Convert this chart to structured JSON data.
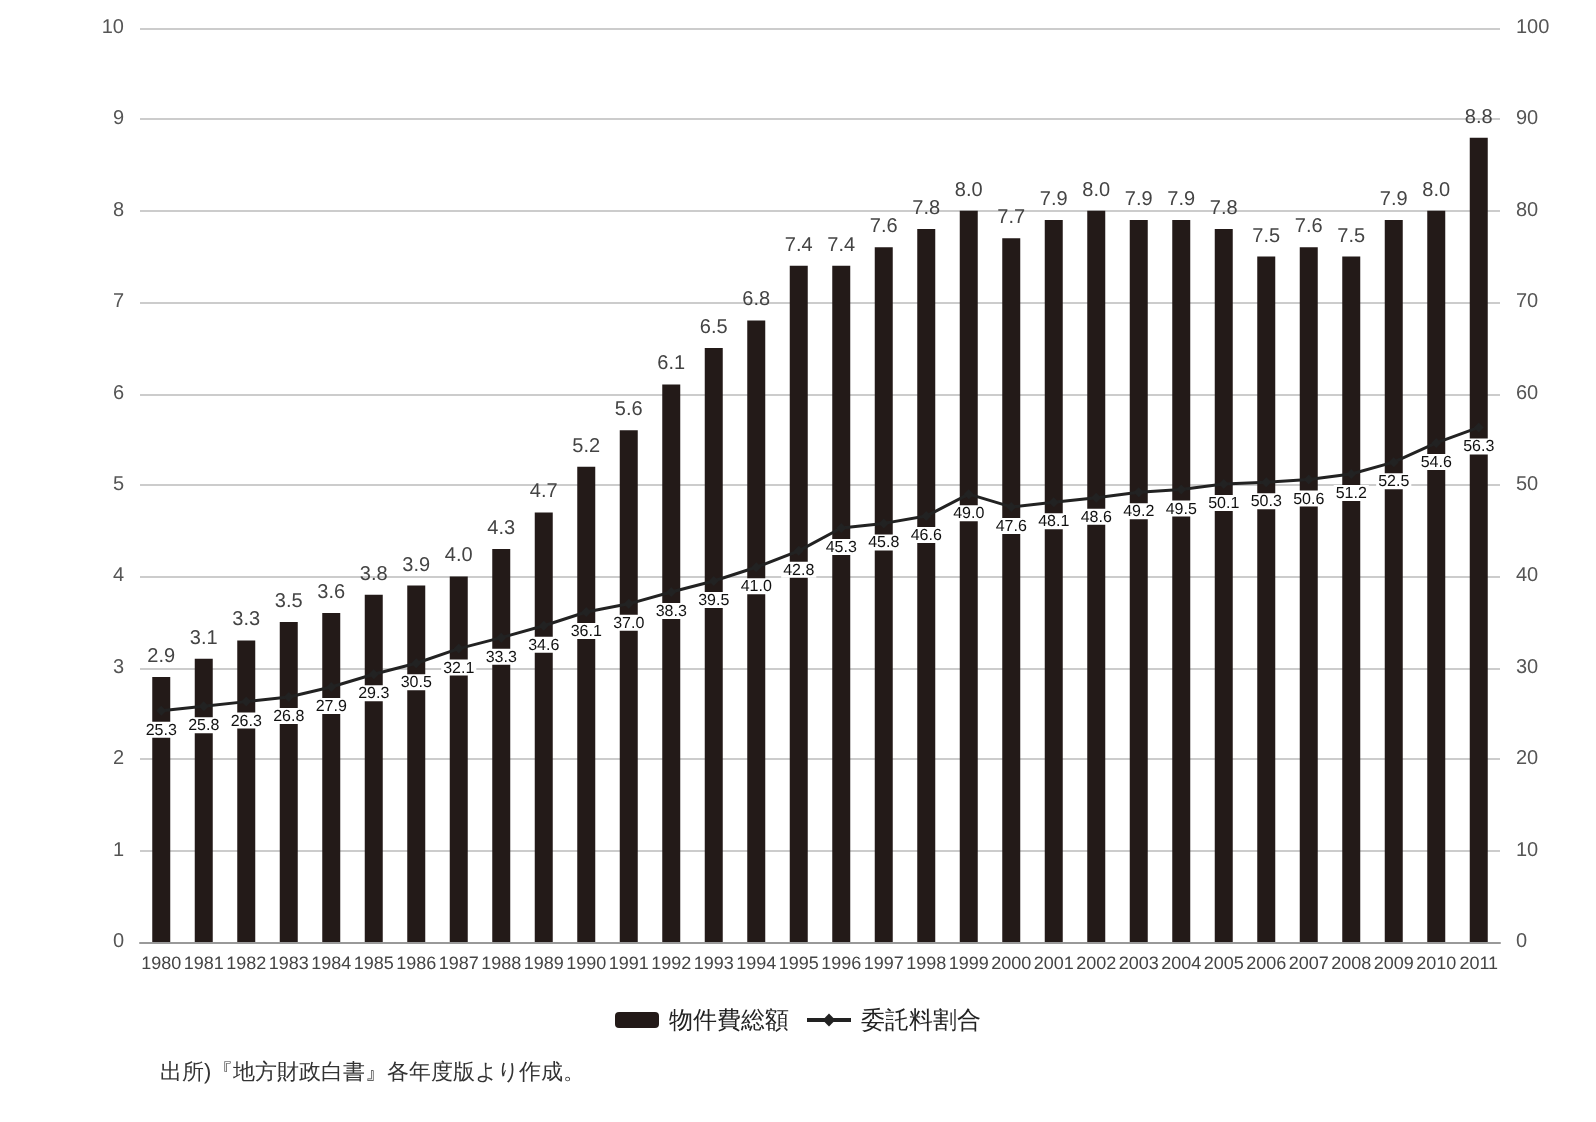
{
  "chart_data": {
    "type": "bar",
    "categories": [
      "1980",
      "1981",
      "1982",
      "1983",
      "1984",
      "1985",
      "1986",
      "1987",
      "1988",
      "1989",
      "1990",
      "1991",
      "1992",
      "1993",
      "1994",
      "1995",
      "1996",
      "1997",
      "1998",
      "1999",
      "2000",
      "2001",
      "2002",
      "2003",
      "2004",
      "2005",
      "2006",
      "2007",
      "2008",
      "2009",
      "2010",
      "2011"
    ],
    "series": [
      {
        "name": "物件費総額",
        "color": "#231a18",
        "values": [
          2.9,
          3.1,
          3.3,
          3.5,
          3.6,
          3.8,
          3.9,
          4.0,
          4.3,
          4.7,
          5.2,
          5.6,
          6.1,
          6.5,
          6.8,
          7.4,
          7.4,
          7.6,
          7.8,
          8.0,
          7.7,
          7.9,
          8.0,
          7.9,
          7.9,
          7.8,
          7.5,
          7.6,
          7.5,
          7.9,
          8.0,
          8.8
        ],
        "value_labels": [
          "2.9",
          "3.1",
          "3.3",
          "3.5",
          "3.6",
          "3.8",
          "3.9",
          "4.0",
          "4.3",
          "4.7",
          "5.2",
          "5.6",
          "6.1",
          "6.5",
          "6.8",
          "7.4",
          "7.4",
          "7.6",
          "7.8",
          "8.0",
          "7.7",
          "7.9",
          "8.0",
          "7.9",
          "7.9",
          "7.8",
          "7.5",
          "7.6",
          "7.5",
          "7.9",
          "8.0",
          "8.8"
        ]
      },
      {
        "name": "委託料割合",
        "type": "line",
        "axis": "y2",
        "color": "#222222",
        "marker": "diamond",
        "values": [
          25.3,
          25.8,
          26.3,
          26.8,
          27.9,
          29.3,
          30.5,
          32.1,
          33.3,
          34.6,
          36.1,
          37.0,
          38.3,
          39.5,
          41.0,
          42.8,
          45.3,
          45.8,
          46.6,
          49.0,
          47.6,
          48.1,
          48.6,
          49.2,
          49.5,
          50.1,
          50.3,
          50.6,
          51.2,
          52.5,
          54.6,
          56.3
        ],
        "value_labels": [
          "25.3",
          "25.8",
          "26.3",
          "26.8",
          "27.9",
          "29.3",
          "30.5",
          "32.1",
          "33.3",
          "34.6",
          "36.1",
          "37.0",
          "38.3",
          "39.5",
          "41.0",
          "42.8",
          "45.3",
          "45.8",
          "46.6",
          "49.0",
          "47.6",
          "48.1",
          "48.6",
          "49.2",
          "49.5",
          "50.1",
          "50.3",
          "50.6",
          "51.2",
          "52.5",
          "54.6",
          "56.3"
        ]
      }
    ],
    "ylim": [
      0,
      10
    ],
    "yticks": [
      0,
      1,
      2,
      3,
      4,
      5,
      6,
      7,
      8,
      9,
      10
    ],
    "y2lim": [
      0,
      100
    ],
    "y2ticks": [
      0,
      10,
      20,
      30,
      40,
      50,
      60,
      70,
      80,
      90,
      100
    ],
    "grid": "y",
    "legend": "bottom",
    "annotations": [
      "出所)『地方財政白書』各年度版より作成。"
    ]
  }
}
